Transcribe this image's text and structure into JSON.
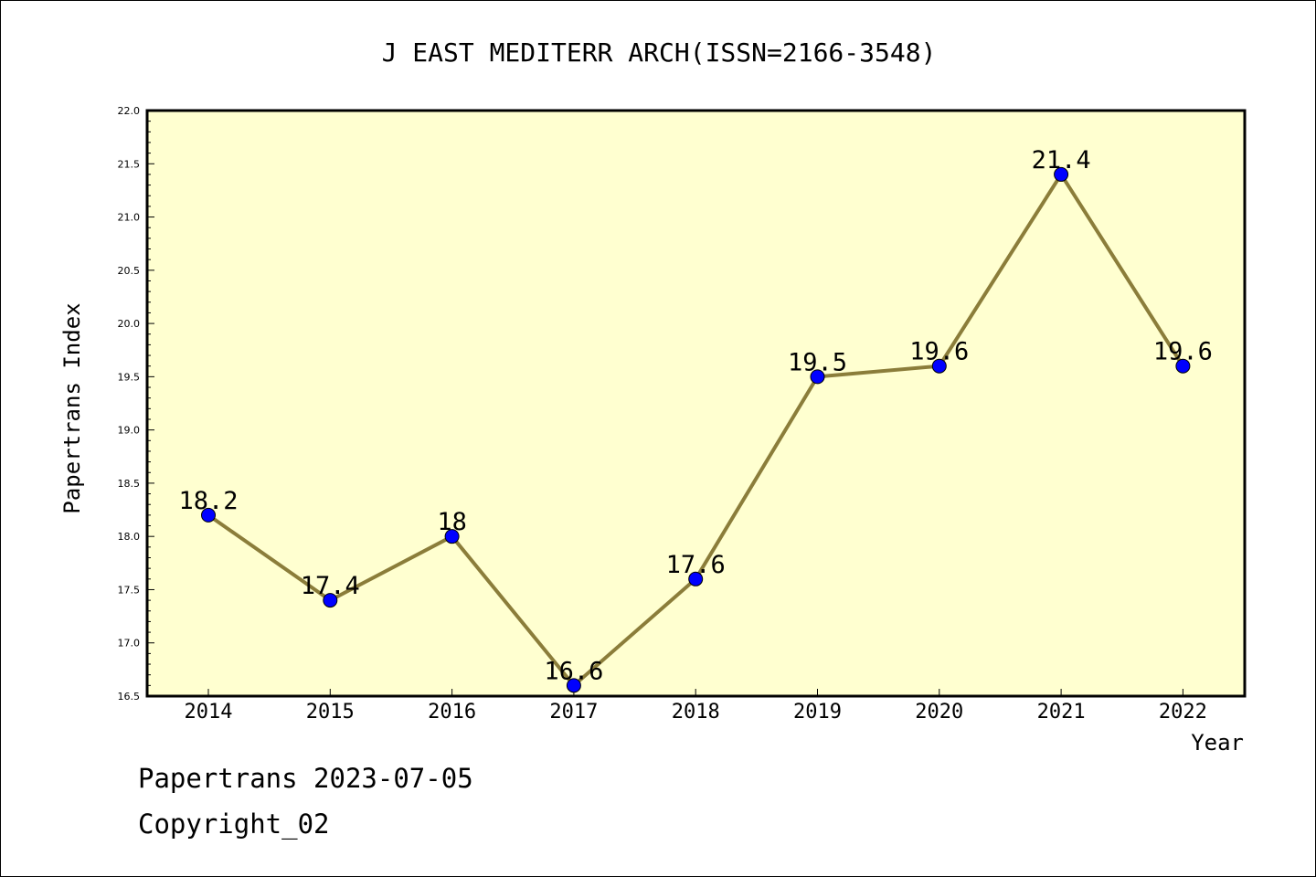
{
  "chart_data": {
    "type": "line",
    "title": "J EAST MEDITERR ARCH(ISSN=2166-3548)",
    "xlabel": "Year",
    "ylabel": "Papertrans Index",
    "categories": [
      "2014",
      "2015",
      "2016",
      "2017",
      "2018",
      "2019",
      "2020",
      "2021",
      "2022"
    ],
    "values": [
      18.2,
      17.4,
      18,
      16.6,
      17.6,
      19.5,
      19.6,
      21.4,
      19.6
    ],
    "data_labels": [
      "18.2",
      "17.4",
      "18",
      "16.6",
      "17.6",
      "19.5",
      "19.6",
      "21.4",
      "19.6"
    ],
    "ylim": [
      16.5,
      22.0
    ],
    "y_ticks": [
      "16.5",
      "17.0",
      "17.5",
      "18.0",
      "18.5",
      "19.0",
      "19.5",
      "20.0",
      "20.5",
      "21.0",
      "21.5",
      "22.0"
    ],
    "grid": false,
    "colors": {
      "plot_background": "#ffffd0",
      "line": "#8b7d3a",
      "marker": "#0000ff"
    }
  },
  "footer": {
    "line1": "Papertrans 2023-07-05",
    "line2": "Copyright_02"
  }
}
